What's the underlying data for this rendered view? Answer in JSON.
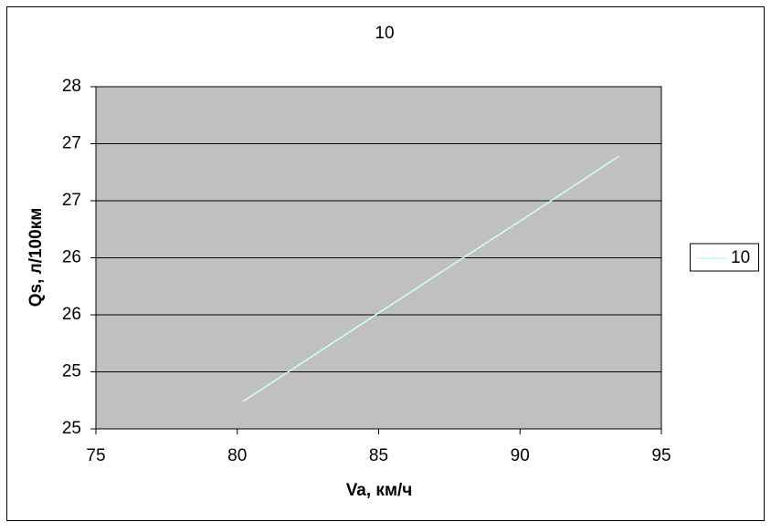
{
  "chart_data": {
    "type": "line",
    "title": "10",
    "x_label": "Va, км/ч",
    "y_label": "Qs, л/100км",
    "x": [
      80.2,
      83.6,
      87.0,
      90.3,
      93.5
    ],
    "series": [
      {
        "name": "10",
        "color": "#ccffff",
        "values": [
          24.74,
          25.29,
          25.84,
          26.37,
          26.89
        ]
      }
    ],
    "xlim": [
      75,
      95
    ],
    "xticks": [
      75,
      80,
      85,
      90,
      95
    ],
    "ylim": [
      24.5,
      27.5
    ],
    "yticks": [
      {
        "value": 24.5,
        "label": "25"
      },
      {
        "value": 25.0,
        "label": "25"
      },
      {
        "value": 25.5,
        "label": "26"
      },
      {
        "value": 26.0,
        "label": "26"
      },
      {
        "value": 26.5,
        "label": "27"
      },
      {
        "value": 27.0,
        "label": "27"
      },
      {
        "value": 27.5,
        "label": "28"
      }
    ],
    "grid": true,
    "legend": "right",
    "plot_background": "#c0c0c0"
  }
}
